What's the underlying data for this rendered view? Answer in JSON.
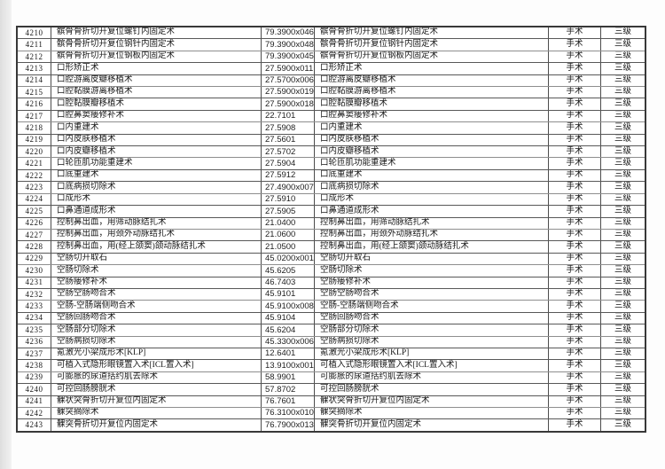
{
  "table": {
    "category_label": "手术",
    "level_label": "三级",
    "rows": [
      {
        "no": "4210",
        "name": "髌骨骨折切开复位螺钉内固定术",
        "code": "79.3900x046",
        "name2": "髌骨骨折切开复位螺钉内固定术",
        "category": "手术",
        "level": "三级"
      },
      {
        "no": "4211",
        "name": "髌骨骨折切开复位钢针内固定术",
        "code": "79.3900x048",
        "name2": "髌骨骨折切开复位钢针内固定术",
        "category": "手术",
        "level": "三级"
      },
      {
        "no": "4212",
        "name": "髌骨骨折切开复位钢板内固定术",
        "code": "79.3900x045",
        "name2": "髌骨骨折切开复位钢板内固定术",
        "category": "手术",
        "level": "三级"
      },
      {
        "no": "4213",
        "name": "口形矫正术",
        "code": "27.5900x011",
        "name2": "口形矫正术",
        "category": "手术",
        "level": "三级"
      },
      {
        "no": "4214",
        "name": "口腔游离皮瓣移植术",
        "code": "27.5700x006",
        "name2": "口腔游离皮瓣移植术",
        "category": "手术",
        "level": "三级"
      },
      {
        "no": "4215",
        "name": "口腔黏膜游离移植术",
        "code": "27.5900x019",
        "name2": "口腔黏膜游离移植术",
        "category": "手术",
        "level": "三级"
      },
      {
        "no": "4216",
        "name": "口腔黏膜瓣移植术",
        "code": "27.5900x018",
        "name2": "口腔黏膜瓣移植术",
        "category": "手术",
        "level": "三级"
      },
      {
        "no": "4217",
        "name": "口腔鼻窦瘘修补术",
        "code": "22.7101",
        "name2": "口腔鼻窦瘘修补术",
        "category": "手术",
        "level": "三级"
      },
      {
        "no": "4218",
        "name": "口内重建术",
        "code": "27.5908",
        "name2": "口内重建术",
        "category": "手术",
        "level": "三级"
      },
      {
        "no": "4219",
        "name": "口内皮肤移植术",
        "code": "27.5601",
        "name2": "口内皮肤移植术",
        "category": "手术",
        "level": "三级"
      },
      {
        "no": "4220",
        "name": "口内皮瓣移植术",
        "code": "27.5702",
        "name2": "口内皮瓣移植术",
        "category": "手术",
        "level": "三级"
      },
      {
        "no": "4221",
        "name": "口轮匝肌功能重建术",
        "code": "27.5904",
        "name2": "口轮匝肌功能重建术",
        "category": "手术",
        "level": "三级"
      },
      {
        "no": "4222",
        "name": "口底重建术",
        "code": "27.5912",
        "name2": "口底重建术",
        "category": "手术",
        "level": "三级"
      },
      {
        "no": "4223",
        "name": "口底病损切除术",
        "code": "27.4900x007",
        "name2": "口底病损切除术",
        "category": "手术",
        "level": "三级"
      },
      {
        "no": "4224",
        "name": "口成形术",
        "code": "27.5910",
        "name2": "口成形术",
        "category": "手术",
        "level": "三级"
      },
      {
        "no": "4225",
        "name": "口鼻通道成形术",
        "code": "27.5905",
        "name2": "口鼻通道成形术",
        "category": "手术",
        "level": "三级"
      },
      {
        "no": "4226",
        "name": "控制鼻出血，用筛动脉结扎术",
        "code": "21.0400",
        "name2": "控制鼻出血，用筛动脉结扎术",
        "category": "手术",
        "level": "三级"
      },
      {
        "no": "4227",
        "name": "控制鼻出血，用颈外动脉结扎术",
        "code": "21.0600",
        "name2": "控制鼻出血，用颈外动脉结扎术",
        "category": "手术",
        "level": "三级"
      },
      {
        "no": "4228",
        "name": "控制鼻出血，用(经上颌窦)颌动脉结扎术",
        "code": "21.0500",
        "name2": "控制鼻出血，用(经上颌窦)颌动脉结扎术",
        "category": "手术",
        "level": "三级"
      },
      {
        "no": "4229",
        "name": "空肠切开取石",
        "code": "45.0200x001",
        "name2": "空肠切开取石",
        "category": "手术",
        "level": "三级"
      },
      {
        "no": "4230",
        "name": "空肠切除术",
        "code": "45.6205",
        "name2": "空肠切除术",
        "category": "手术",
        "level": "三级"
      },
      {
        "no": "4231",
        "name": "空肠瘘修补术",
        "code": "46.7403",
        "name2": "空肠瘘修补术",
        "category": "手术",
        "level": "三级"
      },
      {
        "no": "4232",
        "name": "空肠空肠吻合术",
        "code": "45.9101",
        "name2": "空肠空肠吻合术",
        "category": "手术",
        "level": "三级"
      },
      {
        "no": "4233",
        "name": "空肠-空肠端侧吻合术",
        "code": "45.9100x008",
        "name2": "空肠-空肠端侧吻合术",
        "category": "手术",
        "level": "三级"
      },
      {
        "no": "4234",
        "name": "空肠回肠吻合术",
        "code": "45.9104",
        "name2": "空肠回肠吻合术",
        "category": "手术",
        "level": "三级"
      },
      {
        "no": "4235",
        "name": "空肠部分切除术",
        "code": "45.6204",
        "name2": "空肠部分切除术",
        "category": "手术",
        "level": "三级"
      },
      {
        "no": "4236",
        "name": "空肠病损切除术",
        "code": "45.3300x006",
        "name2": "空肠病损切除术",
        "category": "手术",
        "level": "三级"
      },
      {
        "no": "4237",
        "name": "氪激光小梁成形术[KLP]",
        "code": "12.6401",
        "name2": "氪激光小梁成形术[KLP]",
        "category": "手术",
        "level": "三级"
      },
      {
        "no": "4238",
        "name": "可植入式隐形眼镜置入术[ICL置入术]",
        "code": "13.9100x001",
        "name2": "可植入式隐形眼镜置入术[ICL置入术]",
        "category": "手术",
        "level": "三级"
      },
      {
        "no": "4239",
        "name": "可膨胀的尿道括约肌去除术",
        "code": "58.9901",
        "name2": "可膨胀的尿道括约肌去除术",
        "category": "手术",
        "level": "三级"
      },
      {
        "no": "4240",
        "name": "可控回肠膀胱术",
        "code": "57.8702",
        "name2": "可控回肠膀胱术",
        "category": "手术",
        "level": "三级"
      },
      {
        "no": "4241",
        "name": "髁状突骨折切开复位内固定术",
        "code": "76.7601",
        "name2": "髁状突骨折切开复位内固定术",
        "category": "手术",
        "level": "三级"
      },
      {
        "no": "4242",
        "name": "髁突摘除术",
        "code": "76.3100x010",
        "name2": "髁突摘除术",
        "category": "手术",
        "level": "三级"
      },
      {
        "no": "4243",
        "name": "髁突骨折切开复位内固定术",
        "code": "76.7900x013",
        "name2": "髁突骨折切开复位内固定术",
        "category": "手术",
        "level": "三级"
      }
    ]
  }
}
